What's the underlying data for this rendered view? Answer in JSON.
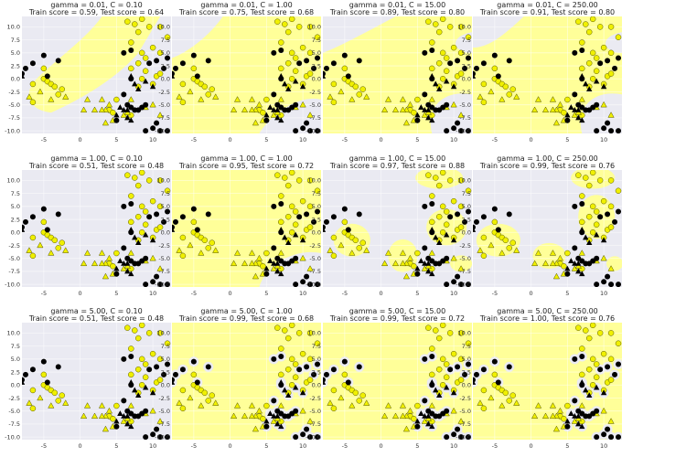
{
  "figure": {
    "background": "#ffffff",
    "axes_background": "#eaeaf2",
    "region_color_class0": "#ffff99",
    "region_color_class1": "#eaeaf2",
    "point_color_class0": "#f0f000",
    "point_color_class1": "#000000",
    "grid": true,
    "layout": "3 rows x 4 columns"
  },
  "chart_data": [
    {
      "type": "scatter",
      "title_line1": "gamma = 0.01, C = 0.10",
      "title_line2": "Train score = 0.59, Test score = 0.64",
      "gamma": 0.01,
      "C": 0.1,
      "train_score": 0.59,
      "test_score": 0.64,
      "region": "A",
      "xlim": [
        -8,
        12.5
      ],
      "ylim": [
        -10.5,
        12
      ],
      "xticks": [
        "-5",
        "0",
        "5",
        "10"
      ],
      "yticks": [
        "10.0",
        "7.5",
        "5.0",
        "2.5",
        "0.0",
        "-2.5",
        "-5.0",
        "-7.5",
        "-10.0"
      ]
    },
    {
      "type": "scatter",
      "title_line1": "gamma = 0.01, C = 1.00",
      "title_line2": "Train score = 0.75, Test score = 0.68",
      "gamma": 0.01,
      "C": 1.0,
      "train_score": 0.75,
      "test_score": 0.68,
      "region": "B",
      "xlim": [
        -8,
        12.5
      ],
      "ylim": [
        -10.5,
        12
      ],
      "xticks": [
        "-5",
        "0",
        "5",
        "10"
      ],
      "yticks": [
        "10.0",
        "7.5",
        "5.0",
        "2.5",
        "0.0",
        "-2.5",
        "-5.0",
        "-7.5",
        "-10.0"
      ]
    },
    {
      "type": "scatter",
      "title_line1": "gamma = 0.01, C = 15.00",
      "title_line2": "Train score = 0.89, Test score = 0.80",
      "gamma": 0.01,
      "C": 15.0,
      "train_score": 0.89,
      "test_score": 0.8,
      "region": "C",
      "xlim": [
        -8,
        12.5
      ],
      "ylim": [
        -10.5,
        12
      ],
      "xticks": [
        "-5",
        "0",
        "5",
        "10"
      ],
      "yticks": [
        "10.0",
        "7.5",
        "5.0",
        "2.5",
        "0.0",
        "-2.5",
        "-5.0",
        "-7.5",
        "-10.0"
      ]
    },
    {
      "type": "scatter",
      "title_line1": "gamma = 0.01, C = 250.00",
      "title_line2": "Train score = 0.91, Test score = 0.80",
      "gamma": 0.01,
      "C": 250.0,
      "train_score": 0.91,
      "test_score": 0.8,
      "region": "D",
      "xlim": [
        -8,
        12.5
      ],
      "ylim": [
        -10.5,
        12
      ],
      "xticks": [
        "-5",
        "0",
        "5",
        "10"
      ],
      "yticks": [
        "10.0",
        "7.5",
        "5.0",
        "2.5",
        "0.0",
        "-2.5",
        "-5.0",
        "-7.5",
        "-10.0"
      ]
    },
    {
      "type": "scatter",
      "title_line1": "gamma = 1.00, C = 0.10",
      "title_line2": "Train score = 0.51, Test score = 0.48",
      "gamma": 1.0,
      "C": 0.1,
      "train_score": 0.51,
      "test_score": 0.48,
      "region": "E",
      "xlim": [
        -8,
        12.5
      ],
      "ylim": [
        -10.5,
        12
      ],
      "xticks": [
        "-5",
        "0",
        "5",
        "10"
      ],
      "yticks": [
        "10.0",
        "7.5",
        "5.0",
        "2.5",
        "0.0",
        "-2.5",
        "-5.0",
        "-7.5",
        "-10.0"
      ]
    },
    {
      "type": "scatter",
      "title_line1": "gamma = 1.00, C = 1.00",
      "title_line2": "Train score = 0.95, Test score = 0.72",
      "gamma": 1.0,
      "C": 1.0,
      "train_score": 0.95,
      "test_score": 0.72,
      "region": "F",
      "xlim": [
        -8,
        12.5
      ],
      "ylim": [
        -10.5,
        12
      ],
      "xticks": [
        "-5",
        "0",
        "5",
        "10"
      ],
      "yticks": [
        "10.0",
        "7.5",
        "5.0",
        "2.5",
        "0.0",
        "-2.5",
        "-5.0",
        "-7.5",
        "-10.0"
      ]
    },
    {
      "type": "scatter",
      "title_line1": "gamma = 1.00, C = 15.00",
      "title_line2": "Train score = 0.97, Test score = 0.88",
      "gamma": 1.0,
      "C": 15.0,
      "train_score": 0.97,
      "test_score": 0.88,
      "region": "G",
      "xlim": [
        -8,
        12.5
      ],
      "ylim": [
        -10.5,
        12
      ],
      "xticks": [
        "-5",
        "0",
        "5",
        "10"
      ],
      "yticks": [
        "10.0",
        "7.5",
        "5.0",
        "2.5",
        "0.0",
        "-2.5",
        "-5.0",
        "-7.5",
        "-10.0"
      ]
    },
    {
      "type": "scatter",
      "title_line1": "gamma = 1.00, C = 250.00",
      "title_line2": "Train score = 0.99, Test score = 0.76",
      "gamma": 1.0,
      "C": 250.0,
      "train_score": 0.99,
      "test_score": 0.76,
      "region": "H",
      "xlim": [
        -8,
        12.5
      ],
      "ylim": [
        -10.5,
        12
      ],
      "xticks": [
        "-5",
        "0",
        "5",
        "10"
      ],
      "yticks": [
        "10.0",
        "7.5",
        "5.0",
        "2.5",
        "0.0",
        "-2.5",
        "-5.0",
        "-7.5",
        "-10.0"
      ]
    },
    {
      "type": "scatter",
      "title_line1": "gamma = 5.00, C = 0.10",
      "title_line2": "Train score = 0.51, Test score = 0.48",
      "gamma": 5.0,
      "C": 0.1,
      "train_score": 0.51,
      "test_score": 0.48,
      "region": "E",
      "xlim": [
        -8,
        12.5
      ],
      "ylim": [
        -10.5,
        12
      ],
      "xticks": [
        "-5",
        "0",
        "5",
        "10"
      ],
      "yticks": [
        "10.0",
        "7.5",
        "5.0",
        "2.5",
        "0.0",
        "-2.5",
        "-5.0",
        "-7.5",
        "-10.0"
      ]
    },
    {
      "type": "scatter",
      "title_line1": "gamma = 5.00, C = 1.00",
      "title_line2": "Train score = 0.99, Test score = 0.68",
      "gamma": 5.0,
      "C": 1.0,
      "train_score": 0.99,
      "test_score": 0.68,
      "region": "I",
      "xlim": [
        -8,
        12.5
      ],
      "ylim": [
        -10.5,
        12
      ],
      "xticks": [
        "-5",
        "0",
        "5",
        "10"
      ],
      "yticks": [
        "10.0",
        "7.5",
        "5.0",
        "2.5",
        "0.0",
        "-2.5",
        "-5.0",
        "-7.5",
        "-10.0"
      ]
    },
    {
      "type": "scatter",
      "title_line1": "gamma = 5.00, C = 15.00",
      "title_line2": "Train score = 0.99, Test score = 0.72",
      "gamma": 5.0,
      "C": 15.0,
      "train_score": 0.99,
      "test_score": 0.72,
      "region": "I",
      "xlim": [
        -8,
        12.5
      ],
      "ylim": [
        -10.5,
        12
      ],
      "xticks": [
        "-5",
        "0",
        "5",
        "10"
      ],
      "yticks": [
        "10.0",
        "7.5",
        "5.0",
        "2.5",
        "0.0",
        "-2.5",
        "-5.0",
        "-7.5",
        "-10.0"
      ]
    },
    {
      "type": "scatter",
      "title_line1": "gamma = 5.00, C = 250.00",
      "title_line2": "Train score = 1.00, Test score = 0.76",
      "gamma": 5.0,
      "C": 250.0,
      "train_score": 1.0,
      "test_score": 0.76,
      "region": "I",
      "xlim": [
        -8,
        12.5
      ],
      "ylim": [
        -10.5,
        12
      ],
      "xticks": [
        "-5",
        "0",
        "5",
        "10"
      ],
      "yticks": [
        "10.0",
        "7.5",
        "5.0",
        "2.5",
        "0.0",
        "-2.5",
        "-5.0",
        "-7.5",
        "-10.0"
      ]
    }
  ],
  "points": {
    "yellow_circles": [
      [
        -6.5,
        -1
      ],
      [
        -5,
        2
      ],
      [
        -5,
        0
      ],
      [
        -4.5,
        -0.5
      ],
      [
        -4,
        -1
      ],
      [
        -3.5,
        -1.5
      ],
      [
        -2.5,
        -2
      ],
      [
        -3,
        -3
      ],
      [
        -6.5,
        -4.5
      ],
      [
        6.5,
        11
      ],
      [
        7.5,
        10.5
      ],
      [
        8.5,
        11.5
      ],
      [
        9.5,
        10
      ],
      [
        8,
        9
      ],
      [
        11,
        10
      ],
      [
        12,
        8
      ],
      [
        7,
        7
      ],
      [
        8.5,
        5
      ],
      [
        10,
        6
      ],
      [
        11,
        5
      ],
      [
        9,
        4
      ],
      [
        8,
        3
      ],
      [
        9,
        1.5
      ],
      [
        10.5,
        0.5
      ],
      [
        11,
        1
      ],
      [
        8.5,
        0
      ],
      [
        10,
        -1
      ],
      [
        7,
        2
      ],
      [
        8,
        -1.5
      ],
      [
        4,
        -6
      ],
      [
        4.5,
        -6.5
      ],
      [
        5,
        -4
      ],
      [
        7,
        -7
      ]
    ],
    "yellow_triangles": [
      [
        -7,
        -3.5
      ],
      [
        -5.5,
        -2.5
      ],
      [
        -4,
        -4
      ],
      [
        -2,
        -3.5
      ],
      [
        1,
        -4
      ],
      [
        3,
        -4
      ],
      [
        3.5,
        -6
      ],
      [
        2,
        -6
      ],
      [
        0.5,
        -6
      ],
      [
        4,
        -5
      ],
      [
        4.5,
        -8
      ],
      [
        3.5,
        -8.5
      ],
      [
        6,
        -7
      ],
      [
        6.5,
        -6.5
      ],
      [
        9,
        -5.5
      ],
      [
        10,
        -5
      ],
      [
        11,
        -7
      ],
      [
        7,
        -4
      ],
      [
        3,
        -6
      ]
    ],
    "black_circles": [
      [
        -8,
        1
      ],
      [
        -7.5,
        2
      ],
      [
        -6.5,
        3
      ],
      [
        -4.5,
        0.5
      ],
      [
        -3,
        3.5
      ],
      [
        -5,
        4.5
      ],
      [
        6,
        5
      ],
      [
        7,
        5.5
      ],
      [
        9.5,
        3
      ],
      [
        10.5,
        3.5
      ],
      [
        12,
        4
      ],
      [
        11.5,
        2
      ],
      [
        7,
        0
      ],
      [
        6.5,
        -5
      ],
      [
        7,
        -5.5
      ],
      [
        7.5,
        -6
      ],
      [
        8,
        -6
      ],
      [
        8.5,
        -5.5
      ],
      [
        9,
        -5
      ],
      [
        6,
        -3
      ],
      [
        5,
        -8
      ],
      [
        10,
        -9.5
      ],
      [
        11,
        -10
      ],
      [
        12,
        -10
      ],
      [
        9,
        -10
      ],
      [
        10.5,
        -8.5
      ]
    ],
    "black_triangles": [
      [
        -8,
        0.5
      ],
      [
        5.5,
        -5.5
      ],
      [
        6,
        -6
      ],
      [
        6.5,
        -6
      ],
      [
        5,
        -7
      ],
      [
        6.5,
        -7.5
      ],
      [
        7,
        -8
      ],
      [
        8,
        -2
      ],
      [
        9,
        -0.5
      ],
      [
        10,
        -1.5
      ],
      [
        7.5,
        -1
      ],
      [
        7,
        0.5
      ]
    ]
  }
}
